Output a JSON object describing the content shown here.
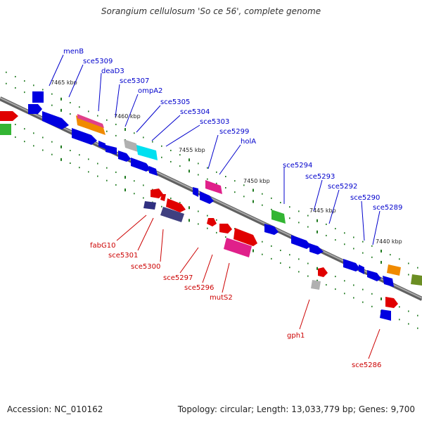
{
  "title": "Sorangium cellulosum 'So ce 56', complete genome",
  "footer": {
    "accession": "Accession: NC_010162",
    "summary": "Topology: circular; Length: 13,033,779 bp; Genes: 9,700"
  },
  "colors": {
    "upper_label": "#0000cc",
    "lower_label": "#cc0000",
    "backbone": "#808080",
    "tick": "#1f7a1f"
  },
  "scale_ticks": [
    "7465 kbp",
    "7460 kbp",
    "7455 kbp",
    "7450 kbp",
    "7445 kbp",
    "7440 kbp"
  ],
  "upper_labels": [
    "menB",
    "sce5309",
    "deaD3",
    "sce5307",
    "ompA2",
    "sce5305",
    "sce5304",
    "sce5303",
    "sce5299",
    "holA",
    "sce5294",
    "sce5293",
    "sce5292",
    "sce5290",
    "sce5289"
  ],
  "lower_labels": [
    "fabG10",
    "sce5301",
    "sce5300",
    "sce5297",
    "sce5296",
    "mutS2",
    "gph1",
    "sce5286"
  ]
}
